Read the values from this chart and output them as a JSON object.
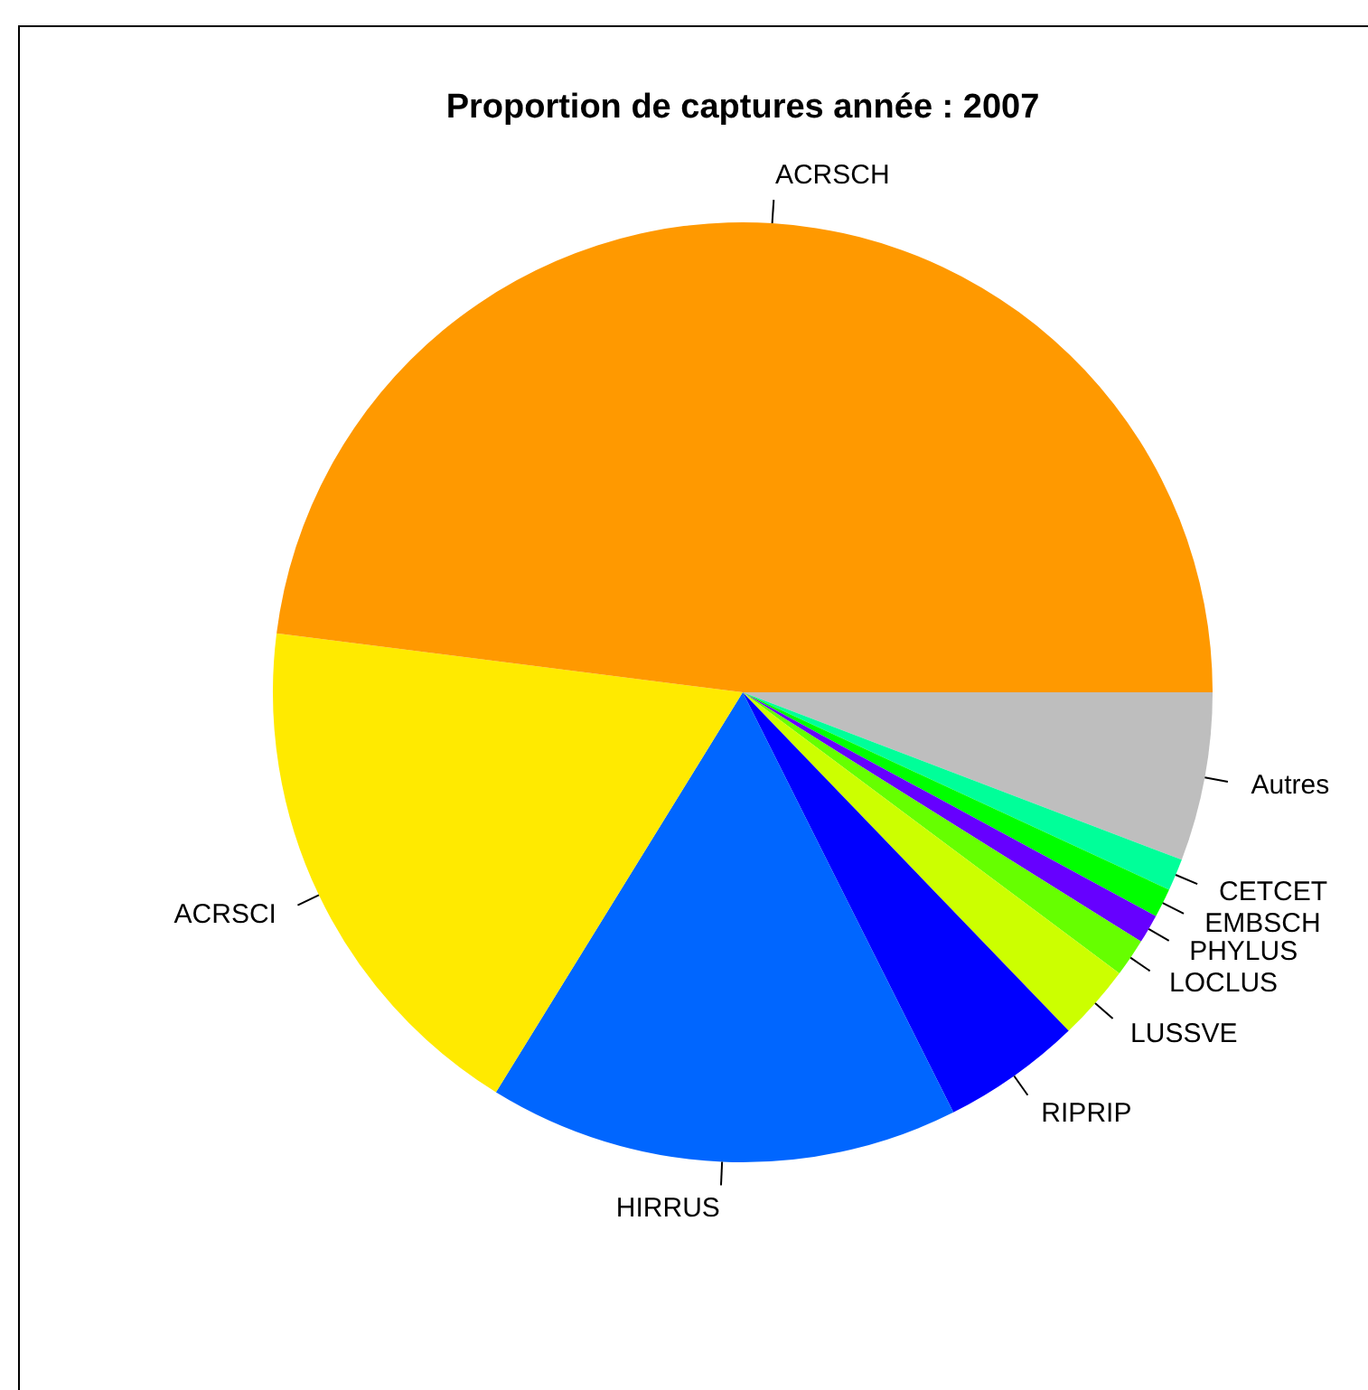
{
  "chart_data": {
    "type": "pie",
    "title": "Proportion de captures année : 2007",
    "categories": [
      "ACRSCH",
      "ACRSCI",
      "HIRRUS",
      "RIPRIP",
      "LUSSVE",
      "LOCLUS",
      "PHYLUS",
      "EMBSCH",
      "CETCET",
      "Autres"
    ],
    "values": [
      48.0,
      18.2,
      16.2,
      4.8,
      2.6,
      1.3,
      1.0,
      1.0,
      1.1,
      5.8
    ],
    "colors": [
      "#ff9900",
      "#ffea00",
      "#0066ff",
      "#0000ff",
      "#ccff00",
      "#66ff00",
      "#6600ff",
      "#00ff00",
      "#00ff99",
      "#bebebe"
    ],
    "legend": false
  }
}
